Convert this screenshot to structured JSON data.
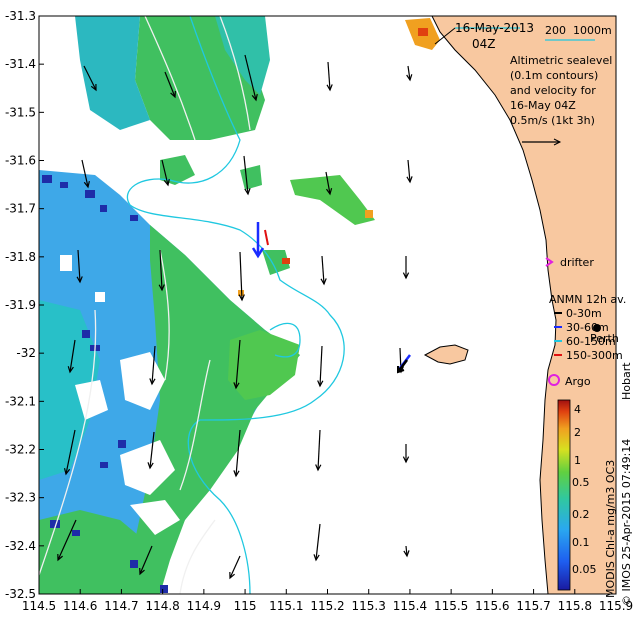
{
  "map": {
    "date": "16-May-2013",
    "time": "04Z",
    "scale_bar": {
      "label_a": "200",
      "label_b": "1000m"
    },
    "legend_text": [
      "Altimetric sealevel",
      "(0.1m contours)",
      "and velocity for",
      "16-May 04Z",
      "0.5m/s (1kt 3h)"
    ],
    "drifter_label": "drifter",
    "anmn": {
      "title": "ANMN 12h av.",
      "items": [
        {
          "label": "0-30m",
          "color": "#000000"
        },
        {
          "label": "30-60m",
          "color": "#1a2cff"
        },
        {
          "label": "60-150m",
          "color": "#20c8e0"
        },
        {
          "label": "150-300m",
          "color": "#e01010"
        }
      ]
    },
    "perth_label": "Perth",
    "hobart_label": "Hobart",
    "argo_label": "Argo",
    "colorbar": {
      "title": "MODIS Chl-a mg/m3 OC3",
      "ticks": [
        "4",
        "2",
        "1",
        "0.5",
        "0.2",
        "0.1",
        "0.05"
      ]
    },
    "credit": "© IMOS 25-Apr-2015 07:49:14",
    "colors": {
      "land": "#f8c8a0",
      "ocean": "#ffffff",
      "contour_cyan": "#20c8e0"
    },
    "x_ticks": [
      "114.5",
      "114.6",
      "114.7",
      "114.8",
      "114.9",
      "115",
      "115.1",
      "115.2",
      "115.3",
      "115.4",
      "115.5",
      "115.6",
      "115.7",
      "115.8",
      "115.9"
    ],
    "y_ticks": [
      "-31.3",
      "-31.4",
      "-31.5",
      "-31.6",
      "-31.7",
      "-31.8",
      "-31.9",
      "-32",
      "-32.1",
      "-32.2",
      "-32.3",
      "-32.4",
      "-32.5"
    ]
  }
}
